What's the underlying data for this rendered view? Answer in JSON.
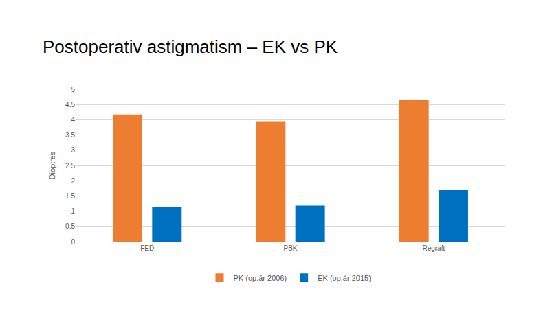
{
  "chart_data": {
    "type": "bar",
    "title": "Postoperativ astigmatism – EK vs PK",
    "y_label": "Dioptres",
    "categories": [
      "FED",
      "PBK",
      "Regraft"
    ],
    "series": [
      {
        "name": "PK (op.år 2006)",
        "color": "#ed7d31",
        "values": [
          4.17,
          3.95,
          4.65
        ]
      },
      {
        "name": "EK (op.år 2015)",
        "color": "#0070c0",
        "values": [
          1.15,
          1.18,
          1.7
        ]
      }
    ],
    "ylim": [
      0,
      5
    ],
    "yticks": [
      0,
      0.5,
      1,
      1.5,
      2,
      2.5,
      3,
      3.5,
      4,
      4.5,
      5
    ],
    "grid": true,
    "legend": "bottom"
  }
}
